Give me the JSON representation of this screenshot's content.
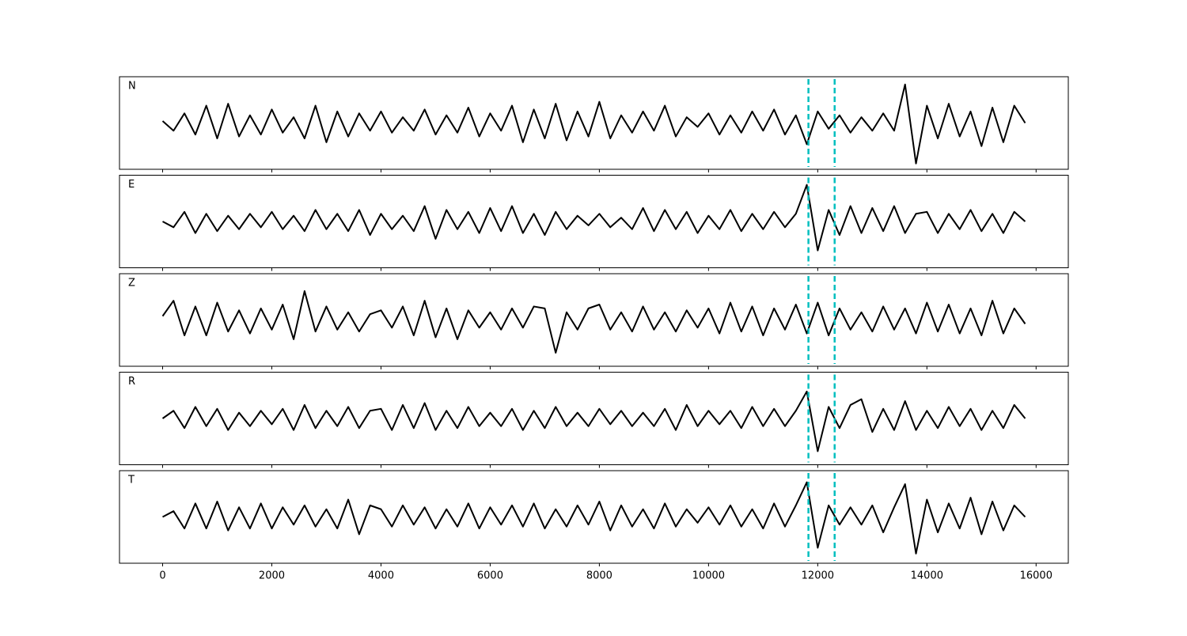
{
  "chart_data": {
    "type": "line",
    "color": "#000000",
    "x": [
      0,
      200,
      400,
      600,
      800,
      1000,
      1200,
      1400,
      1600,
      1800,
      2000,
      2200,
      2400,
      2600,
      2800,
      3000,
      3200,
      3400,
      3600,
      3800,
      4000,
      4200,
      4400,
      4600,
      4800,
      5000,
      5200,
      5400,
      5600,
      5800,
      6000,
      6200,
      6400,
      6600,
      6800,
      7000,
      7200,
      7400,
      7600,
      7800,
      8000,
      8200,
      8400,
      8600,
      8800,
      9000,
      9200,
      9400,
      9600,
      9800,
      10000,
      10200,
      10400,
      10600,
      10800,
      11000,
      11200,
      11400,
      11600,
      11800,
      12000,
      12200,
      12400,
      12600,
      12800,
      13000,
      13200,
      13400,
      13600,
      13800,
      14000,
      14200,
      14400,
      14600,
      14800,
      15000,
      15200,
      15400,
      15600,
      15800
    ],
    "series": [
      {
        "name": "N",
        "values": [
          0.05,
          -0.2,
          0.25,
          -0.3,
          0.45,
          -0.4,
          0.5,
          -0.35,
          0.2,
          -0.3,
          0.35,
          -0.25,
          0.15,
          -0.4,
          0.45,
          -0.5,
          0.3,
          -0.35,
          0.25,
          -0.2,
          0.3,
          -0.25,
          0.15,
          -0.2,
          0.35,
          -0.3,
          0.2,
          -0.25,
          0.4,
          -0.35,
          0.25,
          -0.2,
          0.45,
          -0.5,
          0.35,
          -0.4,
          0.5,
          -0.45,
          0.3,
          -0.35,
          0.55,
          -0.4,
          0.2,
          -0.25,
          0.3,
          -0.2,
          0.45,
          -0.35,
          0.15,
          -0.1,
          0.25,
          -0.3,
          0.2,
          -0.25,
          0.3,
          -0.2,
          0.35,
          -0.3,
          0.2,
          -0.55,
          0.3,
          -0.15,
          0.2,
          -0.25,
          0.15,
          -0.2,
          0.25,
          -0.2,
          1.0,
          -1.05,
          0.45,
          -0.4,
          0.5,
          -0.35,
          0.3,
          -0.6,
          0.4,
          -0.5,
          0.45,
          0.0
        ]
      },
      {
        "name": "E",
        "values": [
          0.0,
          -0.15,
          0.25,
          -0.3,
          0.2,
          -0.25,
          0.15,
          -0.2,
          0.2,
          -0.15,
          0.25,
          -0.2,
          0.15,
          -0.25,
          0.3,
          -0.2,
          0.2,
          -0.25,
          0.3,
          -0.35,
          0.2,
          -0.2,
          0.15,
          -0.25,
          0.4,
          -0.45,
          0.3,
          -0.2,
          0.25,
          -0.3,
          0.35,
          -0.25,
          0.4,
          -0.3,
          0.2,
          -0.35,
          0.25,
          -0.2,
          0.15,
          -0.1,
          0.2,
          -0.15,
          0.1,
          -0.2,
          0.35,
          -0.25,
          0.3,
          -0.2,
          0.25,
          -0.3,
          0.15,
          -0.2,
          0.3,
          -0.25,
          0.2,
          -0.2,
          0.25,
          -0.15,
          0.2,
          0.95,
          -0.75,
          0.3,
          -0.35,
          0.4,
          -0.3,
          0.35,
          -0.25,
          0.4,
          -0.3,
          0.2,
          0.25,
          -0.3,
          0.2,
          -0.2,
          0.3,
          -0.25,
          0.2,
          -0.3,
          0.25,
          0.0
        ]
      },
      {
        "name": "Z",
        "values": [
          0.1,
          0.5,
          -0.4,
          0.35,
          -0.4,
          0.45,
          -0.3,
          0.25,
          -0.35,
          0.3,
          -0.25,
          0.4,
          -0.5,
          0.75,
          -0.3,
          0.35,
          -0.25,
          0.2,
          -0.3,
          0.15,
          0.25,
          -0.2,
          0.35,
          -0.4,
          0.5,
          -0.45,
          0.3,
          -0.5,
          0.25,
          -0.2,
          0.2,
          -0.25,
          0.3,
          -0.2,
          0.35,
          0.3,
          -0.85,
          0.2,
          -0.25,
          0.3,
          0.4,
          -0.25,
          0.2,
          -0.3,
          0.35,
          -0.25,
          0.2,
          -0.3,
          0.25,
          -0.2,
          0.3,
          -0.35,
          0.45,
          -0.3,
          0.35,
          -0.4,
          0.3,
          -0.25,
          0.4,
          -0.35,
          0.45,
          -0.4,
          0.3,
          -0.25,
          0.2,
          -0.3,
          0.35,
          -0.25,
          0.3,
          -0.35,
          0.45,
          -0.3,
          0.4,
          -0.35,
          0.3,
          -0.4,
          0.5,
          -0.35,
          0.3,
          -0.1
        ]
      },
      {
        "name": "R",
        "values": [
          0.0,
          0.2,
          -0.25,
          0.3,
          -0.2,
          0.25,
          -0.3,
          0.15,
          -0.2,
          0.2,
          -0.15,
          0.25,
          -0.3,
          0.35,
          -0.25,
          0.2,
          -0.2,
          0.3,
          -0.25,
          0.2,
          0.25,
          -0.3,
          0.35,
          -0.25,
          0.4,
          -0.3,
          0.2,
          -0.25,
          0.3,
          -0.2,
          0.15,
          -0.2,
          0.25,
          -0.3,
          0.2,
          -0.25,
          0.3,
          -0.2,
          0.15,
          -0.2,
          0.25,
          -0.15,
          0.2,
          -0.2,
          0.15,
          -0.2,
          0.25,
          -0.3,
          0.35,
          -0.2,
          0.2,
          -0.15,
          0.2,
          -0.25,
          0.3,
          -0.2,
          0.25,
          -0.2,
          0.2,
          0.7,
          -0.85,
          0.3,
          -0.25,
          0.35,
          0.5,
          -0.35,
          0.25,
          -0.3,
          0.45,
          -0.3,
          0.2,
          -0.25,
          0.3,
          -0.2,
          0.25,
          -0.3,
          0.2,
          -0.25,
          0.35,
          0.0
        ]
      },
      {
        "name": "T",
        "values": [
          0.0,
          0.15,
          -0.3,
          0.35,
          -0.3,
          0.4,
          -0.35,
          0.25,
          -0.3,
          0.35,
          -0.3,
          0.25,
          -0.2,
          0.3,
          -0.25,
          0.2,
          -0.3,
          0.45,
          -0.45,
          0.3,
          0.2,
          -0.25,
          0.3,
          -0.2,
          0.25,
          -0.3,
          0.2,
          -0.25,
          0.35,
          -0.3,
          0.25,
          -0.2,
          0.3,
          -0.25,
          0.35,
          -0.3,
          0.2,
          -0.25,
          0.3,
          -0.2,
          0.4,
          -0.35,
          0.3,
          -0.25,
          0.2,
          -0.3,
          0.35,
          -0.25,
          0.2,
          -0.15,
          0.25,
          -0.2,
          0.3,
          -0.25,
          0.2,
          -0.3,
          0.35,
          -0.25,
          0.3,
          0.9,
          -0.8,
          0.3,
          -0.2,
          0.25,
          -0.2,
          0.3,
          -0.4,
          0.25,
          0.85,
          -0.95,
          0.45,
          -0.4,
          0.35,
          -0.3,
          0.5,
          -0.45,
          0.4,
          -0.35,
          0.3,
          0.0
        ]
      }
    ],
    "xlim": [
      -790,
      16590
    ],
    "xticks": [
      0,
      2000,
      4000,
      6000,
      8000,
      10000,
      12000,
      14000,
      16000
    ],
    "ylim": [
      -1.2,
      1.2
    ],
    "vlines": [
      11830,
      12310
    ],
    "vline_color": "#00bfbf"
  }
}
